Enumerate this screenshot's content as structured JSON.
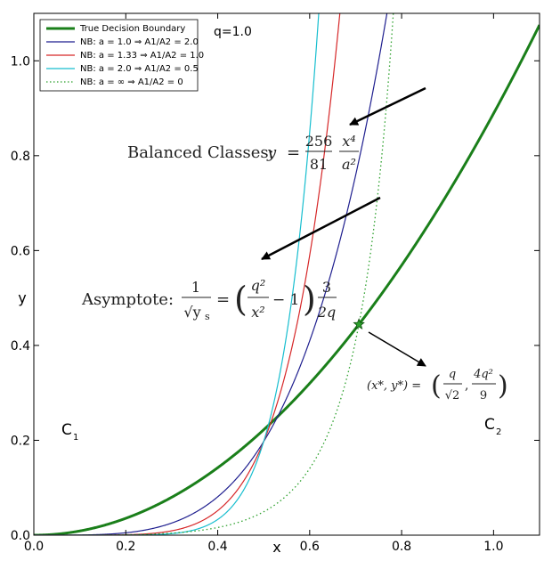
{
  "chart_data": {
    "type": "line",
    "xlabel": "x",
    "ylabel": "y",
    "xlim": [
      0.0,
      1.1
    ],
    "ylim": [
      0.0,
      1.1
    ],
    "xticks": [
      "0.0",
      "0.2",
      "0.4",
      "0.6",
      "0.8",
      "1.0"
    ],
    "yticks": [
      "0.0",
      "0.2",
      "0.4",
      "0.6",
      "0.8",
      "1.0"
    ],
    "grid": false,
    "legend_position": "top-left",
    "corner_label": "q=1.0",
    "series": [
      {
        "name": "True Decision Boundary",
        "color": "#1a7f1a",
        "style": "solid-thick",
        "formula": "y = 0.8889 x^2"
      },
      {
        "name": "NB: a = 1.0 ⇒ A1/A2 = 2.0",
        "color": "#1f1f8f",
        "style": "solid",
        "formula": "y = 3.1605 x^4"
      },
      {
        "name": "NB: a = 1.33 ⇒ A1/A2 = 1.0",
        "color": "#d62728",
        "style": "solid",
        "formula": "y = 12.642 x^6"
      },
      {
        "name": "NB: a = 2.0 ⇒ A1/A2 = 0.5",
        "color": "#17becf",
        "style": "solid",
        "formula": "y = 50.568 x^8"
      },
      {
        "name": "NB: a = ∞ ⇒ A1/A2 = 0",
        "color": "#2ca02c",
        "style": "dotted",
        "formula": "1/sqrt(y) = (1/x^2 - 1) * 1.5"
      }
    ],
    "intersection_point": {
      "x": 0.7071,
      "y": 0.4444,
      "marker": "star",
      "color": "#2ca02c"
    },
    "annotations": {
      "balanced_lead": "Balanced Classes:",
      "balanced_y": "y",
      "balanced_eq": "=",
      "balanced_num": "256",
      "balanced_den": "81",
      "balanced_frac_num": "x⁴",
      "balanced_frac_den": "a²",
      "asym_lead": "Asymptote:",
      "asym_num": "1",
      "asym_den": "√y",
      "asym_den_sub": "s",
      "asym_eq": "=",
      "asym_lparen": "(",
      "asym_rparen": ")",
      "asym_frac_num": "q²",
      "asym_frac_den": "x²",
      "asym_minus": "− 1",
      "asym_frac2_num": "3",
      "asym_frac2_den": "2q",
      "point_lhs": "(x*, y*) =",
      "point_lparen": "(",
      "point_rparen": ")",
      "point_frac1_num": "q",
      "point_frac1_den": "√2",
      "point_comma": ",",
      "point_frac2_num": "4q²",
      "point_frac2_den": "9",
      "c1_main": "C",
      "c1_sub": "1",
      "c2_main": "C",
      "c2_sub": "2"
    }
  }
}
